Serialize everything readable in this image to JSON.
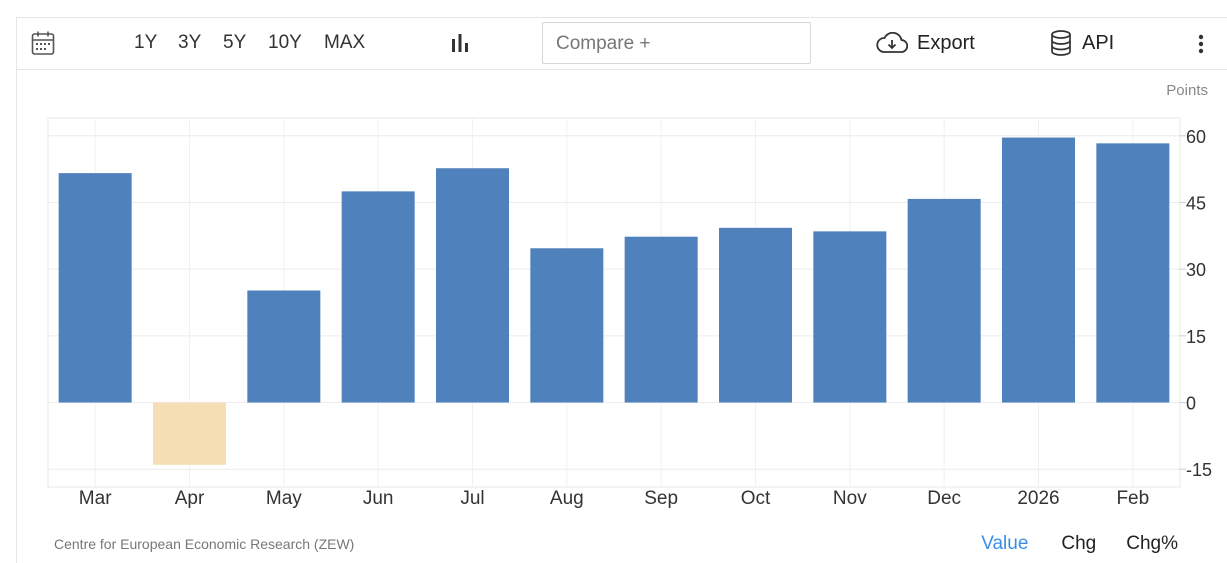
{
  "toolbar": {
    "ranges": [
      "1Y",
      "3Y",
      "5Y",
      "10Y",
      "MAX"
    ],
    "compare_placeholder": "Compare +",
    "export_label": "Export",
    "api_label": "API",
    "icons": {
      "calendar": "calendar-icon",
      "chart_type": "bar-chart-icon",
      "export": "cloud-download-icon",
      "api": "database-icon",
      "more": "more-vertical-icon"
    }
  },
  "chart_data": {
    "type": "bar",
    "categories": [
      "Mar",
      "Apr",
      "May",
      "Jun",
      "Jul",
      "Aug",
      "Sep",
      "Oct",
      "Nov",
      "Dec",
      "2026",
      "Feb"
    ],
    "values": [
      51.6,
      -14,
      25.2,
      47.5,
      52.7,
      34.7,
      37.3,
      39.3,
      38.5,
      45.8,
      59.6,
      58.3
    ],
    "ylabel": "Points",
    "ylim": [
      -19,
      64
    ],
    "yticks": [
      -15,
      0,
      15,
      30,
      45,
      60
    ],
    "colors": {
      "positive": "#4f81bd",
      "negative": "#f5deb3"
    },
    "grid": true
  },
  "footer": {
    "source": "Centre for European Economic Research (ZEW)",
    "tabs": [
      "Value",
      "Chg",
      "Chg%"
    ],
    "active_tab": "Value"
  }
}
